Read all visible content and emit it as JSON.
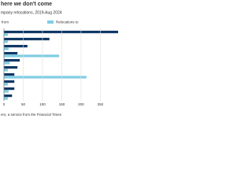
{
  "chart_data": {
    "type": "hbar",
    "title": "here we don't come",
    "subtitle": "mpany relocations, 2019-Aug 2024",
    "source": "ers, a service from the Financial Times",
    "categories": [
      null,
      null,
      null,
      null,
      null,
      null,
      null,
      null,
      null,
      null
    ],
    "series": [
      {
        "name": "from",
        "color": "#0f3865",
        "values": [
          300,
          118,
          61,
          35,
          41,
          35,
          27,
          27,
          27,
          21
        ]
      },
      {
        "name": "Relocations to",
        "color": "#7fcde3",
        "values": [
          10,
          10,
          12,
          143,
          15,
          10,
          214,
          10,
          12,
          10
        ]
      }
    ],
    "xlim": [
      0,
      290
    ],
    "xticks": [
      0,
      50,
      100,
      150,
      200,
      250
    ],
    "grid": true
  }
}
